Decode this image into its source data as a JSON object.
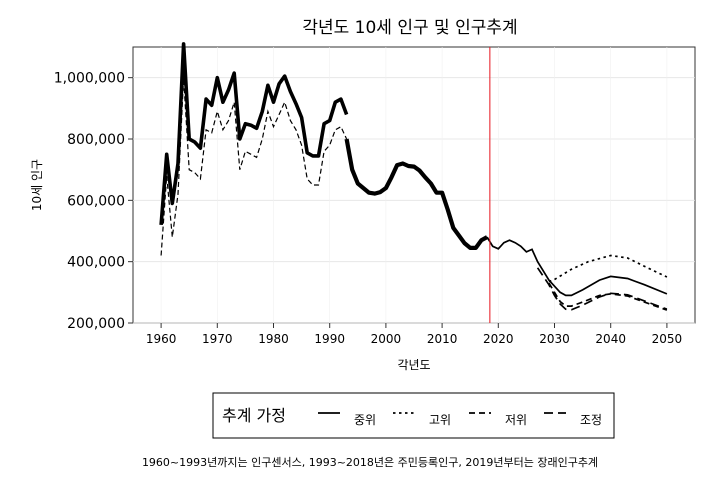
{
  "chart_data": {
    "type": "line",
    "title": "각년도 10세 인구 및 인구추계",
    "xlabel": "각년도",
    "ylabel": "10세 인구",
    "xlim": [
      1955,
      2055
    ],
    "ylim": [
      200000,
      1100000
    ],
    "xticks": [
      1960,
      1970,
      1980,
      1990,
      2000,
      2010,
      2020,
      2030,
      2040,
      2050
    ],
    "xtick_labels": [
      "1960",
      "1970",
      "1980",
      "1990",
      "2000",
      "2010",
      "2020",
      "2030",
      "2040",
      "2050"
    ],
    "yticks": [
      200000,
      400000,
      600000,
      800000,
      1000000
    ],
    "ytick_labels": [
      "200,000",
      "400,000",
      "600,000",
      "800,000",
      "1,000,000"
    ],
    "vline": {
      "x": 2018.5,
      "color": "#e8141e"
    },
    "grid": true,
    "legend": {
      "title": "추계 가정",
      "placement": "bottom",
      "entries": [
        {
          "label": "중위",
          "style": "solid"
        },
        {
          "label": "고위",
          "style": "dotted"
        },
        {
          "label": "저위",
          "style": "dashed"
        },
        {
          "label": "조정",
          "style": "longdash"
        }
      ]
    },
    "caption": "1960~1993년까지는 인구센서스, 1993~2018년은 주민등록인구, 2019년부터는 장래인구추계",
    "historical": {
      "upper": {
        "x": [
          1960,
          1961,
          1962,
          1963,
          1964,
          1965,
          1966,
          1967,
          1968,
          1969,
          1970,
          1971,
          1972,
          1973,
          1974,
          1975,
          1976,
          1977,
          1978,
          1979,
          1980,
          1981,
          1982,
          1983,
          1984,
          1985,
          1986,
          1987,
          1988,
          1989,
          1990,
          1991,
          1992,
          1993
        ],
        "y": [
          520000,
          750000,
          590000,
          720000,
          1110000,
          800000,
          790000,
          770000,
          930000,
          910000,
          1000000,
          920000,
          960000,
          1015000,
          800000,
          850000,
          845000,
          835000,
          890000,
          975000,
          920000,
          980000,
          1005000,
          955000,
          915000,
          870000,
          755000,
          745000,
          745000,
          850000,
          860000,
          920000,
          930000,
          880000
        ]
      },
      "lower": {
        "x": [
          1960,
          1961,
          1962,
          1963,
          1964,
          1965,
          1966,
          1967,
          1968,
          1969,
          1970,
          1971,
          1972,
          1973,
          1974,
          1975,
          1976,
          1977,
          1978,
          1979,
          1980,
          1981,
          1982,
          1983,
          1984,
          1985,
          1986,
          1987,
          1988,
          1989,
          1990,
          1991,
          1992,
          1993
        ],
        "y": [
          420000,
          680000,
          480000,
          620000,
          1000000,
          700000,
          690000,
          670000,
          830000,
          820000,
          890000,
          830000,
          860000,
          920000,
          700000,
          760000,
          750000,
          740000,
          800000,
          890000,
          840000,
          880000,
          920000,
          860000,
          830000,
          780000,
          670000,
          650000,
          650000,
          760000,
          780000,
          830000,
          840000,
          800000
        ]
      },
      "main": {
        "x": [
          1993,
          1994,
          1995,
          1996,
          1997,
          1998,
          1999,
          2000,
          2001,
          2002,
          2003,
          2004,
          2005,
          2006,
          2007,
          2008,
          2009,
          2010,
          2011,
          2012,
          2013,
          2014,
          2015,
          2016,
          2017,
          2018
        ],
        "y": [
          800000,
          700000,
          655000,
          640000,
          625000,
          622000,
          627000,
          640000,
          675000,
          715000,
          720000,
          712000,
          710000,
          697000,
          675000,
          655000,
          625000,
          625000,
          570000,
          510000,
          485000,
          460000,
          445000,
          445000,
          470000,
          480000
        ]
      }
    },
    "series": [
      {
        "name": "중위",
        "style": "solid",
        "x": [
          2018,
          2019,
          2020,
          2021,
          2022,
          2023,
          2024,
          2025,
          2026,
          2027,
          2028,
          2029,
          2030,
          2031,
          2032,
          2033,
          2035,
          2038,
          2040,
          2043,
          2046,
          2050
        ],
        "y": [
          480000,
          450000,
          442000,
          462000,
          470000,
          462000,
          450000,
          432000,
          440000,
          400000,
          370000,
          340000,
          320000,
          300000,
          290000,
          290000,
          308000,
          340000,
          352000,
          345000,
          325000,
          295000
        ]
      },
      {
        "name": "고위",
        "style": "dotted",
        "x": [
          2029,
          2030,
          2033,
          2036,
          2040,
          2043,
          2046,
          2050
        ],
        "y": [
          335000,
          342000,
          375000,
          400000,
          420000,
          412000,
          385000,
          350000
        ]
      },
      {
        "name": "저위",
        "style": "dashed",
        "x": [
          2029,
          2030,
          2031,
          2032,
          2033,
          2035,
          2038,
          2040,
          2043,
          2046,
          2050
        ],
        "y": [
          330000,
          300000,
          270000,
          255000,
          255000,
          268000,
          290000,
          295000,
          288000,
          268000,
          242000
        ]
      },
      {
        "name": "조정",
        "style": "longdash",
        "x": [
          2027,
          2029,
          2030,
          2031,
          2032,
          2033,
          2035,
          2038,
          2040,
          2043,
          2046,
          2050
        ],
        "y": [
          380000,
          325000,
          290000,
          262000,
          245000,
          243000,
          258000,
          285000,
          297000,
          292000,
          272000,
          245000
        ]
      }
    ]
  }
}
